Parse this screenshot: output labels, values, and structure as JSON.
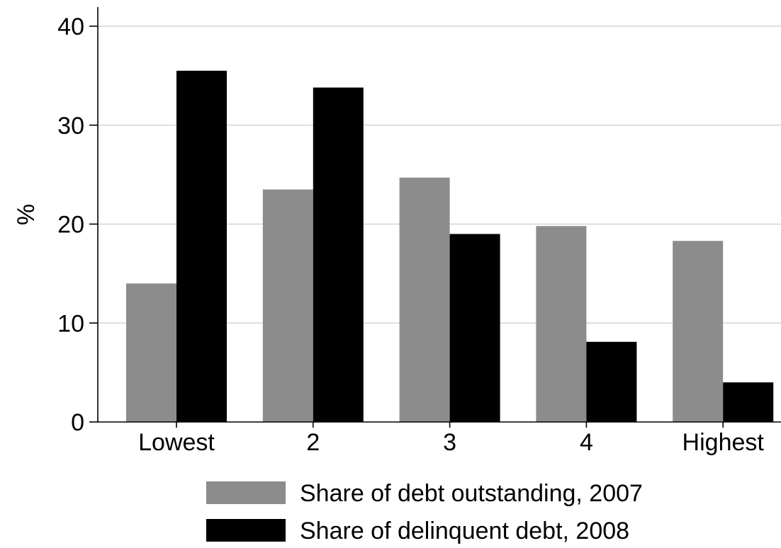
{
  "chart_data": {
    "type": "bar",
    "categories": [
      "Lowest",
      "2",
      "3",
      "4",
      "Highest"
    ],
    "series": [
      {
        "name": "Share of debt outstanding, 2007",
        "values": [
          14.0,
          23.5,
          24.7,
          19.8,
          18.3
        ],
        "color": "#8c8c8c"
      },
      {
        "name": "Share of delinquent debt, 2008",
        "values": [
          35.5,
          33.8,
          19.0,
          8.1,
          4.0
        ],
        "color": "#000000"
      }
    ],
    "title": "",
    "xlabel": "",
    "ylabel": "%",
    "ylim": [
      0,
      40
    ],
    "yticks": [
      0,
      10,
      20,
      30,
      40
    ],
    "grid": true,
    "legend_position": "bottom"
  }
}
